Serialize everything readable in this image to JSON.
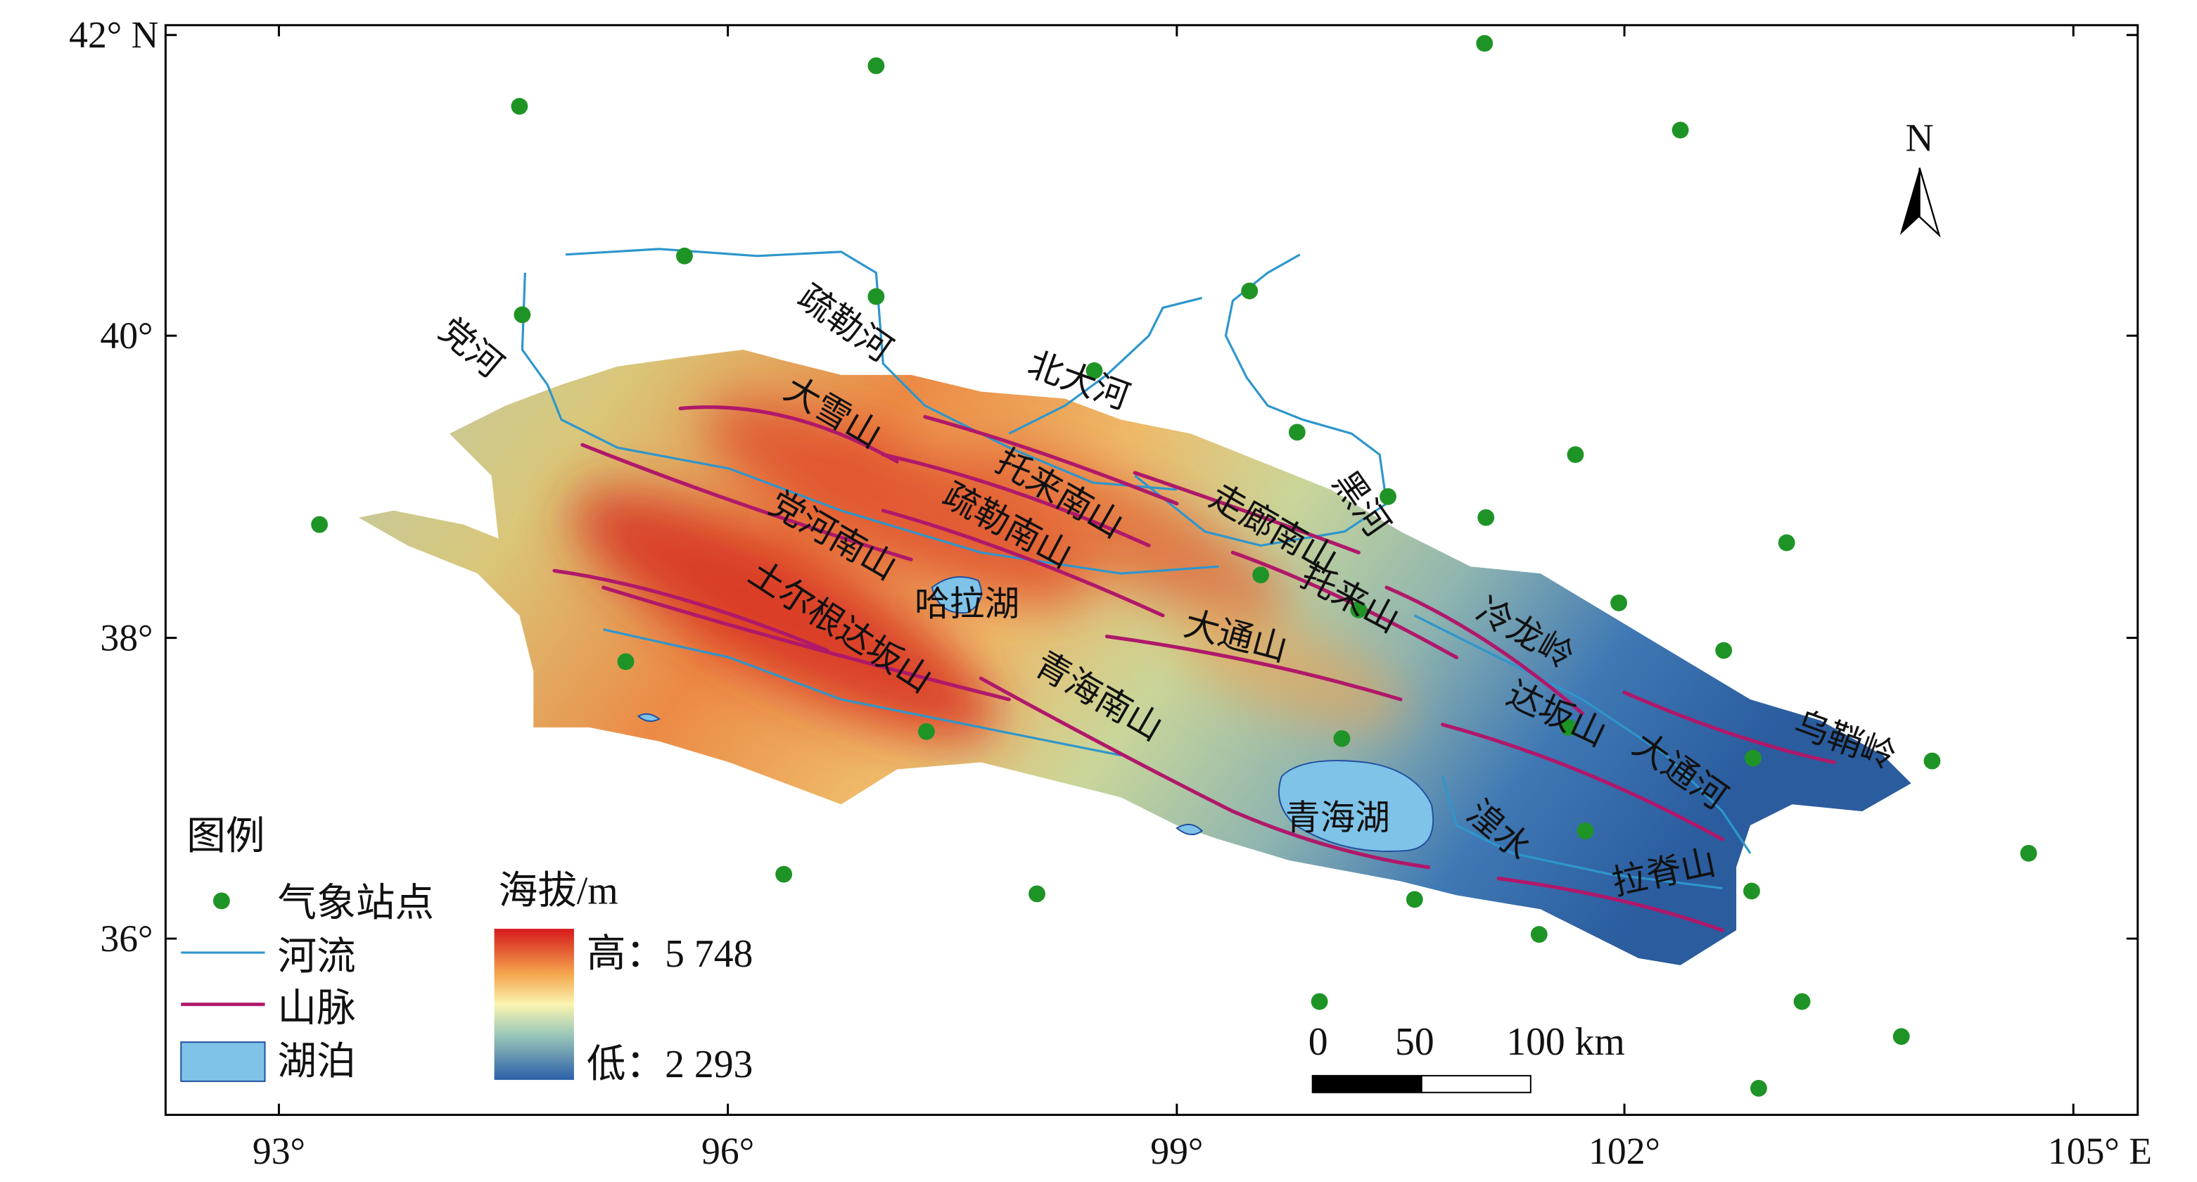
{
  "map": {
    "lat_labels": [
      "42° N",
      "40°",
      "38°",
      "36°"
    ],
    "lon_labels": [
      "93°",
      "96°",
      "99°",
      "102°",
      "105° E"
    ],
    "features": [
      "党河",
      "疏勒河",
      "北大河",
      "黑河",
      "大雪山",
      "托来南山",
      "走廊南山",
      "党河南山",
      "疏勒南山",
      "哈拉湖",
      "托来山",
      "冷龙岭",
      "土尔根达坂山",
      "大通山",
      "青海南山",
      "青海湖",
      "湟水",
      "达坂山",
      "大通河",
      "拉脊山",
      "乌鞘岭"
    ],
    "north": "N",
    "scale_bar": [
      "0",
      "50",
      "100 km"
    ],
    "legend": {
      "title": "图例",
      "items": [
        "气象站点",
        "河流",
        "山脉",
        "湖泊"
      ]
    },
    "elevation_legend": {
      "title": "海拔/m",
      "high": "高：5 748",
      "low": "低：2 293"
    }
  }
}
